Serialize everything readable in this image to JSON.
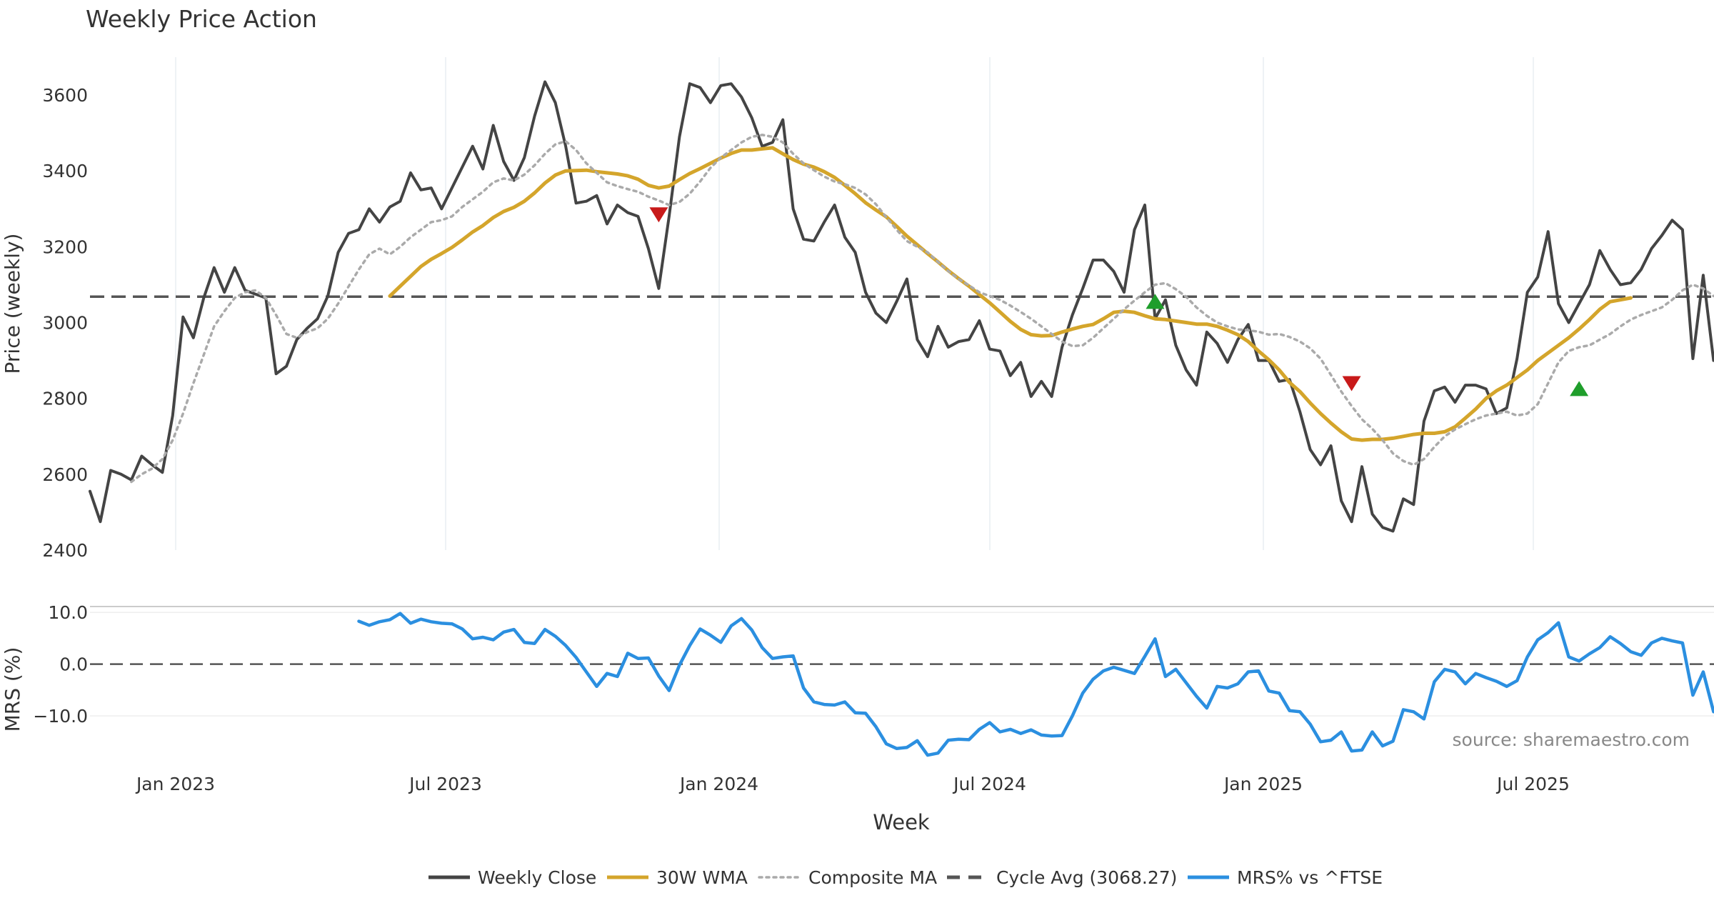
{
  "chart_data": {
    "type": "line",
    "title": "Weekly Price Action",
    "x_label": "Week",
    "x_ticks": [
      "Jan 2023",
      "Jul 2023",
      "Jan 2024",
      "Jul 2024",
      "Jan 2025",
      "Jul 2025"
    ],
    "price_panel": {
      "ylabel": "Price (weekly)",
      "ylim": [
        2400,
        3700
      ],
      "yticks": [
        2400,
        2600,
        2800,
        3000,
        3200,
        3400,
        3600
      ],
      "cycle_avg": 3068.27,
      "series": [
        {
          "name": "Weekly Close",
          "color": "#444444",
          "style": "solid",
          "start_index": 0,
          "values": [
            2555,
            2475,
            2610,
            2600,
            2585,
            2648,
            2625,
            2605,
            2755,
            3015,
            2960,
            3065,
            3145,
            3080,
            3145,
            3085,
            3075,
            3065,
            2865,
            2885,
            2955,
            2985,
            3010,
            3070,
            3185,
            3235,
            3245,
            3300,
            3265,
            3305,
            3320,
            3395,
            3350,
            3355,
            3300,
            3355,
            3410,
            3465,
            3405,
            3520,
            3425,
            3375,
            3435,
            3545,
            3635,
            3580,
            3465,
            3315,
            3320,
            3335,
            3260,
            3310,
            3290,
            3280,
            3195,
            3090,
            3280,
            3490,
            3630,
            3620,
            3580,
            3625,
            3630,
            3595,
            3540,
            3465,
            3475,
            3535,
            3300,
            3220,
            3215,
            3265,
            3310,
            3225,
            3185,
            3080,
            3025,
            3000,
            3055,
            3115,
            2955,
            2910,
            2990,
            2935,
            2950,
            2955,
            3005,
            2930,
            2925,
            2860,
            2895,
            2805,
            2845,
            2805,
            2935,
            3020,
            3090,
            3165,
            3165,
            3135,
            3080,
            3245,
            3310,
            3010,
            3060,
            2940,
            2875,
            2835,
            2975,
            2945,
            2895,
            2955,
            2995,
            2900,
            2900,
            2845,
            2850,
            2765,
            2665,
            2625,
            2675,
            2530,
            2475,
            2620,
            2495,
            2460,
            2450,
            2535,
            2520,
            2740,
            2820,
            2830,
            2790,
            2835,
            2835,
            2825,
            2760,
            2775,
            2905,
            3080,
            3120,
            3240,
            3050,
            3000,
            3050,
            3100,
            3190,
            3140,
            3100,
            3105,
            3140,
            3195,
            3230,
            3270,
            3245,
            2905,
            3125,
            2900
          ]
        },
        {
          "name": "30W WMA",
          "color": "#d4a52b",
          "style": "solid",
          "start_index": 29,
          "values": [
            3070,
            3096,
            3122,
            3148,
            3167,
            3182,
            3198,
            3218,
            3239,
            3256,
            3277,
            3293,
            3304,
            3320,
            3342,
            3368,
            3389,
            3400,
            3401,
            3402,
            3398,
            3395,
            3392,
            3387,
            3378,
            3362,
            3355,
            3360,
            3377,
            3393,
            3406,
            3420,
            3434,
            3446,
            3455,
            3455,
            3458,
            3461,
            3445,
            3430,
            3418,
            3410,
            3398,
            3383,
            3362,
            3340,
            3316,
            3297,
            3279,
            3254,
            3228,
            3205,
            3182,
            3160,
            3137,
            3116,
            3096,
            3074,
            3052,
            3028,
            3003,
            2982,
            2968,
            2965,
            2966,
            2975,
            2983,
            2990,
            2995,
            3010,
            3027,
            3030,
            3027,
            3018,
            3010,
            3008,
            3004,
            3000,
            2996,
            2996,
            2990,
            2980,
            2968,
            2950,
            2925,
            2902,
            2875,
            2842,
            2818,
            2788,
            2760,
            2735,
            2712,
            2693,
            2690,
            2692,
            2692,
            2695,
            2700,
            2705,
            2708,
            2708,
            2712,
            2725,
            2748,
            2772,
            2800,
            2820,
            2835,
            2855,
            2875,
            2900,
            2920,
            2940,
            2960,
            2983,
            3008,
            3035,
            3055,
            3060,
            3065
          ]
        },
        {
          "name": "Composite MA",
          "color": "#aaaaaa",
          "style": "dotted",
          "start_index": 4,
          "values": [
            2580,
            2600,
            2615,
            2640,
            2690,
            2760,
            2840,
            2915,
            2990,
            3030,
            3065,
            3080,
            3085,
            3065,
            3020,
            2970,
            2960,
            2975,
            2985,
            3010,
            3050,
            3095,
            3140,
            3180,
            3195,
            3180,
            3200,
            3225,
            3245,
            3265,
            3270,
            3280,
            3305,
            3325,
            3345,
            3370,
            3380,
            3375,
            3390,
            3415,
            3445,
            3470,
            3478,
            3455,
            3420,
            3395,
            3370,
            3360,
            3352,
            3345,
            3332,
            3322,
            3310,
            3318,
            3340,
            3372,
            3408,
            3435,
            3455,
            3475,
            3490,
            3495,
            3490,
            3475,
            3445,
            3420,
            3402,
            3385,
            3372,
            3365,
            3355,
            3338,
            3312,
            3278,
            3245,
            3215,
            3200,
            3185,
            3160,
            3136,
            3115,
            3098,
            3080,
            3070,
            3060,
            3045,
            3028,
            3010,
            2990,
            2970,
            2950,
            2938,
            2940,
            2960,
            2985,
            3010,
            3035,
            3058,
            3080,
            3100,
            3104,
            3088,
            3068,
            3040,
            3018,
            3000,
            2990,
            2982,
            2980,
            2976,
            2968,
            2970,
            2962,
            2950,
            2932,
            2905,
            2862,
            2818,
            2780,
            2745,
            2720,
            2690,
            2655,
            2635,
            2625,
            2640,
            2672,
            2700,
            2718,
            2732,
            2745,
            2755,
            2760,
            2765,
            2755,
            2760,
            2785,
            2840,
            2895,
            2925,
            2935,
            2940,
            2955,
            2970,
            2990,
            3008,
            3020,
            3030,
            3040,
            3060,
            3085,
            3100,
            3090,
            3070,
            3075
          ]
        }
      ]
    },
    "mrs_panel": {
      "ylabel": "MRS (%)",
      "ylim": [
        -18,
        11
      ],
      "yticks": [
        10.0,
        0.0,
        -10.0
      ],
      "ytick_labels": [
        "10.0",
        "0.0",
        "−10.0"
      ],
      "series": [
        {
          "name": "MRS% vs ^FTSE",
          "color": "#2b8fe0",
          "style": "solid",
          "start_index": 26,
          "values": [
            8.3,
            7.5,
            8.2,
            8.6,
            9.8,
            7.9,
            8.7,
            8.2,
            7.9,
            7.8,
            6.8,
            4.9,
            5.2,
            4.7,
            6.2,
            6.7,
            4.2,
            4.0,
            6.7,
            5.4,
            3.6,
            1.3,
            -1.5,
            -4.3,
            -1.8,
            -2.4,
            2.1,
            1.1,
            1.2,
            -2.3,
            -5.1,
            -0.2,
            3.6,
            6.8,
            5.6,
            4.2,
            7.4,
            8.8,
            6.6,
            3.2,
            1.1,
            1.4,
            1.6,
            -4.6,
            -7.3,
            -7.8,
            -7.9,
            -7.3,
            -9.4,
            -9.5,
            -12.1,
            -15.4,
            -16.3,
            -16.1,
            -14.8,
            -17.6,
            -17.2,
            -14.7,
            -14.5,
            -14.6,
            -12.6,
            -11.3,
            -13.1,
            -12.6,
            -13.4,
            -12.7,
            -13.7,
            -13.9,
            -13.8,
            -10.0,
            -5.6,
            -2.9,
            -1.3,
            -0.6,
            -1.2,
            -1.8,
            1.5,
            4.9,
            -2.4,
            -1.0,
            -3.6,
            -6.2,
            -8.5,
            -4.3,
            -4.6,
            -3.8,
            -1.5,
            -1.3,
            -5.2,
            -5.6,
            -9.0,
            -9.2,
            -11.6,
            -15.0,
            -14.7,
            -13.1,
            -16.8,
            -16.6,
            -13.1,
            -15.8,
            -14.9,
            -8.8,
            -9.2,
            -10.6,
            -3.4,
            -1.0,
            -1.5,
            -3.8,
            -1.8,
            -2.6,
            -3.3,
            -4.3,
            -3.2,
            1.4,
            4.7,
            6.1,
            8.0,
            1.4,
            0.6,
            2.0,
            3.2,
            5.3,
            4.0,
            2.4,
            1.7,
            4.1,
            5.0,
            4.5,
            4.1,
            -6.0,
            -1.5,
            -9.2
          ]
        }
      ]
    },
    "signals": {
      "sell": [
        {
          "index": 55,
          "value": 3285
        },
        {
          "index": 122,
          "value": 2840
        }
      ],
      "buy": [
        {
          "index": 103,
          "value": 3055
        },
        {
          "index": 144,
          "value": 2825
        }
      ],
      "sell_color": "#c81a1a",
      "buy_color": "#1f9e2b"
    },
    "legend": [
      {
        "label": "Weekly Close",
        "color": "#444444",
        "style": "solid"
      },
      {
        "label": "30W WMA",
        "color": "#d4a52b",
        "style": "solid"
      },
      {
        "label": "Composite MA",
        "color": "#aaaaaa",
        "style": "dotted"
      },
      {
        "label": "Cycle Avg (3068.27)",
        "color": "#555555",
        "style": "dashed"
      },
      {
        "label": "MRS% vs ^FTSE",
        "color": "#2b8fe0",
        "style": "solid"
      }
    ],
    "source": "source: sharemaestro.com"
  }
}
